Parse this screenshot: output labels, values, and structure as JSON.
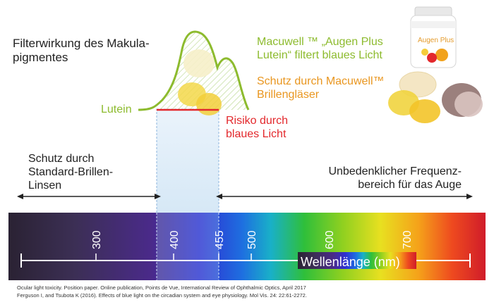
{
  "title": {
    "line1": "Filterwirkung des Makula-",
    "line2": "pigmentes"
  },
  "product_text": {
    "line1": "Macuwell ™ „Augen Plus",
    "line2": "Lutein“ filtert blaues Licht"
  },
  "product_label": "Augen Plus",
  "glasses_text": {
    "line1": "Schutz durch Macuwell™",
    "line2": "Brillengläser"
  },
  "lutein_label": "Lutein",
  "risk_label": {
    "line1": "Risiko durch",
    "line2": "blaues Licht"
  },
  "left_text": {
    "line1": "Schutz durch",
    "line2": "Standard-Brillen-",
    "line3": "Linsen"
  },
  "right_text": {
    "line1": "Unbedenklicher Frequenz-",
    "line2": "bereich für das Auge"
  },
  "spectrum": {
    "ticks": [
      "300",
      "400",
      "455",
      "500",
      "600",
      "700"
    ],
    "axis_label": "Wellenlänge (nm)"
  },
  "references": {
    "line1": "Ocular light toxicity. Position paper. Online publication, Points de Vue, International Review of Ophthalmic Optics, April 2017",
    "line2": "Ferguson I, and Tsubota K (2016). Effects of blue light on the circadian system and eye physiology. Mol Vis. 24: 22:61-2272."
  },
  "colors": {
    "lutein_green": "#8dbb2e",
    "glasses_orange": "#e9961f",
    "risk_red": "#e3282c",
    "blue_band": "#dcebf7"
  }
}
